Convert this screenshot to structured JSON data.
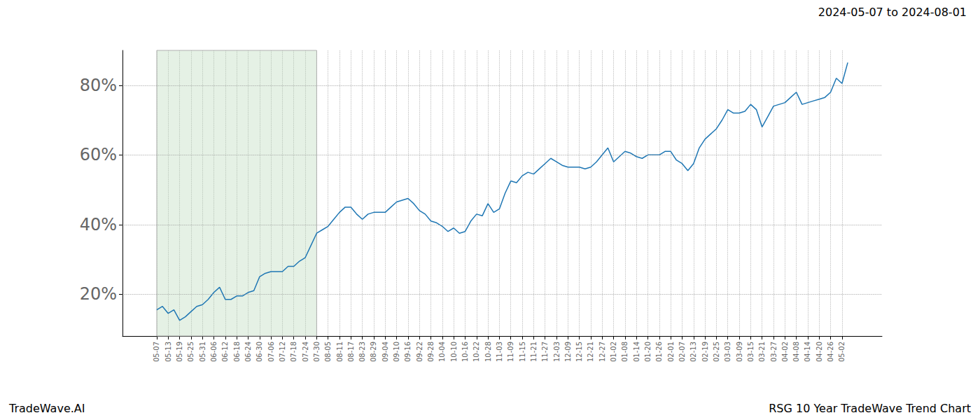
{
  "chart_data": {
    "type": "line",
    "title": "2024-05-07 to 2024-08-01",
    "annotations": [
      "TradeWave.AI",
      "RSG 10 Year TradeWave Trend Chart"
    ],
    "categories": [
      null,
      null,
      null,
      null,
      null,
      null,
      "05-07",
      null,
      "05-13",
      null,
      "05-19",
      null,
      "05-25",
      null,
      "05-31",
      null,
      "06-06",
      null,
      "06-12",
      null,
      "06-18",
      null,
      "06-24",
      null,
      "06-30",
      null,
      "07-06",
      null,
      "07-12",
      null,
      "07-18",
      null,
      "07-24",
      null,
      "07-30",
      null,
      "08-05",
      null,
      "08-11",
      null,
      "08-17",
      null,
      "08-23",
      null,
      "08-29",
      null,
      "09-04",
      null,
      "09-10",
      null,
      "09-16",
      null,
      "09-22",
      null,
      "09-28",
      null,
      "10-04",
      null,
      "10-10",
      null,
      "10-16",
      null,
      "10-22",
      null,
      "10-28",
      null,
      "11-03",
      null,
      "11-09",
      null,
      "11-15",
      null,
      "11-21",
      null,
      "11-27",
      null,
      "12-03",
      null,
      "12-09",
      null,
      "12-15",
      null,
      "12-21",
      null,
      "12-27",
      null,
      "01-02",
      null,
      "01-08",
      null,
      "01-14",
      null,
      "01-20",
      null,
      "01-26",
      null,
      "02-01",
      null,
      "02-07",
      null,
      "02-13",
      null,
      "02-19",
      null,
      "02-25",
      null,
      "03-03",
      null,
      "03-09",
      null,
      "03-15",
      null,
      "03-21",
      null,
      "03-27",
      null,
      "04-02",
      null,
      "04-08",
      null,
      "04-14",
      null,
      "04-20",
      null,
      "04-26",
      null,
      "05-02",
      null,
      null,
      null,
      null,
      null,
      null,
      null
    ],
    "values": [
      null,
      null,
      null,
      null,
      null,
      null,
      15.5,
      16.5,
      14.5,
      15.5,
      12.5,
      13.5,
      15,
      16.5,
      17,
      18.5,
      20.5,
      22,
      18.5,
      18.5,
      19.5,
      19.5,
      20.5,
      21,
      25,
      26,
      26.5,
      26.5,
      26.5,
      28,
      28,
      29.5,
      30.5,
      34,
      37.5,
      38.5,
      39.5,
      41.5,
      43.5,
      45,
      45,
      43,
      41.5,
      43,
      43.5,
      43.5,
      43.5,
      45,
      46.5,
      47,
      47.5,
      46,
      44,
      43,
      41,
      40.5,
      39.5,
      38,
      39,
      37.5,
      38,
      41,
      43,
      42.5,
      46,
      43.5,
      44.5,
      49,
      52.5,
      52,
      54,
      55,
      54.5,
      56,
      57.5,
      59,
      58,
      57,
      56.5,
      56.5,
      56.5,
      56,
      56.5,
      58,
      60,
      62,
      58,
      59.5,
      61,
      60.5,
      59.5,
      59,
      60,
      60,
      60,
      61,
      61,
      58.5,
      57.5,
      55.5,
      57.5,
      62,
      64.5,
      66,
      67.5,
      70,
      73,
      72,
      72,
      72.5,
      74.5,
      73,
      68,
      71,
      74,
      74.5,
      75,
      76.5,
      78,
      74.5,
      75,
      75.5,
      76,
      76.5,
      78,
      82,
      80.5,
      86.5,
      null,
      null,
      null,
      null,
      null,
      null
    ],
    "color": "#1f77b4",
    "ylim": [
      8,
      90
    ],
    "yticks": [
      {
        "value": 20,
        "label": "20%"
      },
      {
        "value": 40,
        "label": "40%"
      },
      {
        "value": 60,
        "label": "60%"
      },
      {
        "value": 80,
        "label": "80%"
      }
    ],
    "grid": true,
    "shaded_range": [
      "05-07",
      "07-30"
    ]
  }
}
